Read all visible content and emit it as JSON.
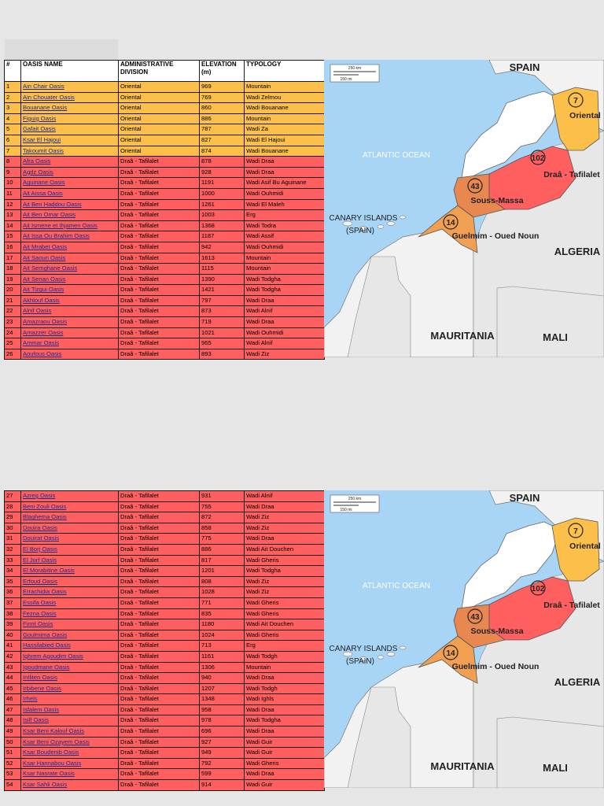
{
  "table": {
    "headers": [
      "#",
      "OASIS NAME",
      "ADMINISTRATIVE DIVISION",
      "ELEVATION (m)",
      "TYPOLOGY"
    ],
    "rows_top": [
      {
        "n": "1",
        "name": "Ain Chair Oasis",
        "div": "Oriental",
        "elev": "969",
        "type": "Mountain"
      },
      {
        "n": "2",
        "name": "Ain Chouater Oasis",
        "div": "Oriental",
        "elev": "769",
        "type": "Wadi Zelmou"
      },
      {
        "n": "3",
        "name": "Bouanane Oasis",
        "div": "Oriental",
        "elev": "860",
        "type": "Wadi Bouanane"
      },
      {
        "n": "4",
        "name": "Figuig Oasis",
        "div": "Oriental",
        "elev": "886",
        "type": "Mountain"
      },
      {
        "n": "5",
        "name": "Gafait Oasis",
        "div": "Oriental",
        "elev": "787",
        "type": "Wadi Za"
      },
      {
        "n": "6",
        "name": "Ksar El Hajoui",
        "div": "Oriental",
        "elev": "827",
        "type": "Wadi El Hajoui"
      },
      {
        "n": "7",
        "name": "Takoumit Oasis",
        "div": "Oriental",
        "elev": "874",
        "type": "Wadi Bouanane"
      },
      {
        "n": "8",
        "name": "Afra Oasis",
        "div": "Draâ - Tafilalet",
        "elev": "878",
        "type": "Wadi Draa"
      },
      {
        "n": "9",
        "name": "Agdz Oasis",
        "div": "Draâ - Tafilalet",
        "elev": "928",
        "type": "Wadi Draa"
      },
      {
        "n": "10",
        "name": "Aguinane Oasis",
        "div": "Draâ - Tafilalet",
        "elev": "1191",
        "type": "Wadi Asif Bu Aguinane"
      },
      {
        "n": "11",
        "name": "Ait Aissa Oasis",
        "div": "Draâ - Tafilalet",
        "elev": "1000",
        "type": "Wadi Ouhmidi"
      },
      {
        "n": "12",
        "name": "Ait Ben Haddou Oasis",
        "div": "Draâ - Tafilalet",
        "elev": "1261",
        "type": "Wadi El Maleh"
      },
      {
        "n": "13",
        "name": "Ait Ben Omar Oasis",
        "div": "Draâ - Tafilalet",
        "elev": "1003",
        "type": "Erg"
      },
      {
        "n": "14",
        "name": "Ait Ismene et Ihjamen Oasis",
        "div": "Draâ - Tafilalet",
        "elev": "1368",
        "type": "Wadi Todra"
      },
      {
        "n": "15",
        "name": "Ait Issa Ou Brahim Oasis",
        "div": "Draâ - Tafilalet",
        "elev": "1187",
        "type": "Wadi Assif"
      },
      {
        "n": "16",
        "name": "Ait Mrabet Oasis",
        "div": "Draâ - Tafilalet",
        "elev": "942",
        "type": "Wadi Ouhmidi"
      },
      {
        "n": "17",
        "name": "Ait Saoun Oasis",
        "div": "Draâ - Tafilalet",
        "elev": "1613",
        "type": "Mountain"
      },
      {
        "n": "18",
        "name": "Ait Semghane Oasis",
        "div": "Draâ - Tafilalet",
        "elev": "1115",
        "type": "Mountain"
      },
      {
        "n": "19",
        "name": "Ait Senan Oasis",
        "div": "Draâ - Tafilalet",
        "elev": "1390",
        "type": "Wadi Todgha"
      },
      {
        "n": "20",
        "name": "Ait Tizgui Oasis",
        "div": "Draâ - Tafilalet",
        "elev": "1421",
        "type": "Wadi Todgha"
      },
      {
        "n": "21",
        "name": "Akhlouf Oasis",
        "div": "Draâ - Tafilalet",
        "elev": "797",
        "type": "Wadi Draa"
      },
      {
        "n": "22",
        "name": "Alnif Oasis",
        "div": "Draâ - Tafilalet",
        "elev": "873",
        "type": "Wadi Alnif"
      },
      {
        "n": "23",
        "name": "Amazraou Oasis",
        "div": "Draâ - Tafilalet",
        "elev": "719",
        "type": "Wadi Draa"
      },
      {
        "n": "24",
        "name": "Amazzer Oasis",
        "div": "Draâ - Tafilalet",
        "elev": "1021",
        "type": "Wadi Ouhmidi"
      },
      {
        "n": "25",
        "name": "Ammar Oasis",
        "div": "Draâ - Tafilalet",
        "elev": "965",
        "type": "Wadi Alnif"
      },
      {
        "n": "26",
        "name": "Aoufous Oasis",
        "div": "Draâ - Tafilalet",
        "elev": "893",
        "type": "Wadi Ziz"
      }
    ],
    "rows_bottom": [
      {
        "n": "27",
        "name": "Azreg Oasis",
        "div": "Draâ - Tafilalet",
        "elev": "931",
        "type": "Wadi Alnif"
      },
      {
        "n": "28",
        "name": "Beni Zouli Oasis",
        "div": "Draâ - Tafilalet",
        "elev": "755",
        "type": "Wadi Draa"
      },
      {
        "n": "29",
        "name": "Blaghema Oasis",
        "div": "Draâ - Tafilalet",
        "elev": "872",
        "type": "Wadi Ziz"
      },
      {
        "n": "30",
        "name": "Douira Oasis",
        "div": "Draâ - Tafilalet",
        "elev": "858",
        "type": "Wadi Ziz"
      },
      {
        "n": "31",
        "name": "Douirat Oasis",
        "div": "Draâ - Tafilalet",
        "elev": "775",
        "type": "Wadi Draa"
      },
      {
        "n": "32",
        "name": "El Borj Oasis",
        "div": "Draâ - Tafilalet",
        "elev": "886",
        "type": "Wadi Ait Douchen"
      },
      {
        "n": "33",
        "name": "El Jorf Oasis",
        "div": "Draâ - Tafilalet",
        "elev": "817",
        "type": "Wadi Gheris"
      },
      {
        "n": "34",
        "name": "El Morabitine Oasis",
        "div": "Draâ - Tafilalet",
        "elev": "1201",
        "type": "Wadi Todgha"
      },
      {
        "n": "35",
        "name": "Erfoud Oasis",
        "div": "Draâ - Tafilalet",
        "elev": "808",
        "type": "Wadi Ziz"
      },
      {
        "n": "36",
        "name": "Errachidia Oasis",
        "div": "Draâ - Tafilalet",
        "elev": "1028",
        "type": "Wadi Ziz"
      },
      {
        "n": "37",
        "name": "Essifa Oasis",
        "div": "Draâ - Tafilalet",
        "elev": "771",
        "type": "Wadi Gheris"
      },
      {
        "n": "38",
        "name": "Fezna Oasis",
        "div": "Draâ - Tafilalet",
        "elev": "835",
        "type": "Wadi Gheris"
      },
      {
        "n": "39",
        "name": "Finnt Oasis",
        "div": "Draâ - Tafilalet",
        "elev": "1180",
        "type": "Wadi Ait Douchen"
      },
      {
        "n": "40",
        "name": "Goulmima Oasis",
        "div": "Draâ - Tafilalet",
        "elev": "1024",
        "type": "Wadi Gheris"
      },
      {
        "n": "41",
        "name": "Hassilabied Oasis",
        "div": "Draâ - Tafilalet",
        "elev": "713",
        "type": "Erg"
      },
      {
        "n": "42",
        "name": "Ighrem Agoudim Oasis",
        "div": "Draâ - Tafilalet",
        "elev": "1161",
        "type": "Wadi Todgh"
      },
      {
        "n": "43",
        "name": "Igoudmane Oasis",
        "div": "Draâ - Tafilalet",
        "elev": "1306",
        "type": "Mountain"
      },
      {
        "n": "44",
        "name": "Intliten Oasis",
        "div": "Draâ - Tafilalet",
        "elev": "940",
        "type": "Wadi Draa"
      },
      {
        "n": "45",
        "name": "Irbibene Oasis",
        "div": "Draâ - Tafilalet",
        "elev": "1207",
        "type": "Wadi Todgh"
      },
      {
        "n": "46",
        "name": "Irhels",
        "div": "Draâ - Tafilalet",
        "elev": "1348",
        "type": "Wadi Ighls"
      },
      {
        "n": "47",
        "name": "Isfalem Oasis",
        "div": "Draâ - Tafilalet",
        "elev": "958",
        "type": "Wadi Draa"
      },
      {
        "n": "48",
        "name": "Isilf Oasis",
        "div": "Draâ - Tafilalet",
        "elev": "978",
        "type": "Wadi Todgha"
      },
      {
        "n": "49",
        "name": "Ksar Beni Kalouf Oasis",
        "div": "Draâ - Tafilalet",
        "elev": "696",
        "type": "Wadi Draa"
      },
      {
        "n": "50",
        "name": "Ksar Beni Ozayem Oasis",
        "div": "Draâ - Tafilalet",
        "elev": "927",
        "type": "Wadi Guir"
      },
      {
        "n": "51",
        "name": "Ksar Boudenib Oasis",
        "div": "Draâ - Tafilalet",
        "elev": "949",
        "type": "Wadi Guir"
      },
      {
        "n": "52",
        "name": "Ksar Hannabou Oasis",
        "div": "Draâ - Tafilalet",
        "elev": "792",
        "type": "Wadi Gheris"
      },
      {
        "n": "53",
        "name": "Ksar Nasrate Oasis",
        "div": "Draâ - Tafilalet",
        "elev": "599",
        "type": "Wadi Draa"
      },
      {
        "n": "54",
        "name": "Ksar Sahli Oasis",
        "div": "Draâ - Tafilalet",
        "elev": "914",
        "type": "Wadi Guir"
      }
    ]
  },
  "map": {
    "scale_km": "250 km",
    "scale_mi": "150 mi",
    "countries": {
      "spain": "SPAIN",
      "algeria": "ALGERIA",
      "mauritania": "MAURITANIA",
      "mali": "MALI"
    },
    "ocean": "ATLANTIC OCEAN",
    "canary": "CANARY ISLANDS",
    "canary_sub": "(SPAIN)",
    "regions": [
      {
        "name": "Oriental",
        "count": "7"
      },
      {
        "name": "Draâ - Tafilalet",
        "count": "102"
      },
      {
        "name": "Souss-Massa",
        "count": "43"
      },
      {
        "name": "Guelmim - Oued Noun",
        "count": "14"
      }
    ],
    "colors": {
      "oriental": "#fcbf49",
      "draa": "#ff5f5f",
      "souss": "#e8874f",
      "guelmim": "#f0a050",
      "ocean": "#a8d4f5",
      "land": "#f2f2f2",
      "coast": "#1f6fb0"
    }
  }
}
